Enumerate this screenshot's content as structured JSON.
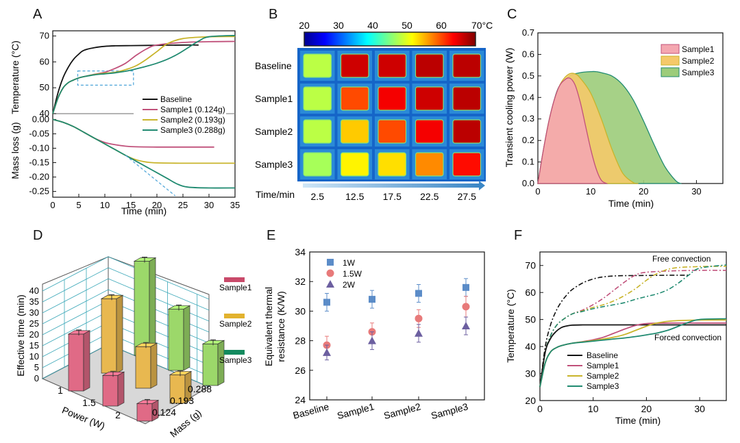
{
  "panels": {
    "A": {
      "label": "A"
    },
    "B": {
      "label": "B"
    },
    "C": {
      "label": "C"
    },
    "D": {
      "label": "D"
    },
    "E": {
      "label": "E"
    },
    "F": {
      "label": "F"
    }
  },
  "colors": {
    "baseline": "#111111",
    "sample1": "#c0507a",
    "sample2": "#c8b42a",
    "sample3": "#1f8a70",
    "c_sample1": "#f4a7b0",
    "c_sample2": "#f5c96a",
    "c_sample3": "#9ccc7a",
    "d_sample1": "#e06a86",
    "d_sample2": "#e8b850",
    "d_sample3": "#9cd86a",
    "legend_d_sample1": "#c94a6a",
    "legend_d_sample2": "#e2b22e",
    "legend_d_sample3": "#138a5e",
    "e_1w": "#5b8cc8",
    "e_15w": "#e87a7a",
    "e_2w": "#6c5fa0",
    "rect_highlight": "#4aa3d8"
  },
  "chart_data": [
    {
      "panel": "A",
      "type": "line",
      "xlabel": "Time (min)",
      "ylabel_top": "Temperature (°C)",
      "ylabel_bottom": "Mass loss (g)",
      "xlim": [
        0,
        35
      ],
      "xticks": [
        "0",
        "5",
        "10",
        "15",
        "20",
        "25",
        "30",
        "35"
      ],
      "top_ylim": [
        40,
        72
      ],
      "top_yticks": [
        "40",
        "50",
        "60",
        "70"
      ],
      "bottom_ylim": [
        -0.27,
        0.02
      ],
      "bottom_yticks": [
        "0.00",
        "-0.05",
        "-0.10",
        "-0.15",
        "-0.20",
        "-0.25"
      ],
      "legend": [
        {
          "name": "Baseline",
          "mass": ""
        },
        {
          "name": "Sample1",
          "mass": "(0.124g)"
        },
        {
          "name": "Sample2",
          "mass": "(0.193g)"
        },
        {
          "name": "Sample3",
          "mass": "(0.288g)"
        }
      ],
      "temperature_series": [
        {
          "name": "Baseline",
          "x": [
            0,
            1,
            2,
            3,
            4,
            5,
            6,
            8,
            10,
            12,
            15,
            20,
            25,
            28
          ],
          "y": [
            40,
            48,
            54,
            58,
            61,
            63,
            64.5,
            65.5,
            66,
            66.2,
            66.3,
            66.4,
            66.5,
            66.5
          ]
        },
        {
          "name": "Sample1",
          "x": [
            0,
            1,
            2,
            3,
            4,
            5,
            6,
            8,
            10,
            12,
            14,
            16,
            18,
            20,
            25,
            30,
            35
          ],
          "y": [
            40,
            46,
            50,
            52,
            53,
            53.8,
            54.3,
            55.2,
            56,
            57.5,
            59.5,
            62.5,
            65,
            66.5,
            67.5,
            67.8,
            67.9
          ]
        },
        {
          "name": "Sample2",
          "x": [
            0,
            1,
            2,
            3,
            4,
            5,
            6,
            8,
            10,
            12,
            14,
            16,
            18,
            20,
            22,
            25,
            30,
            35
          ],
          "y": [
            40,
            46,
            50,
            52,
            53,
            53.8,
            54.3,
            55.1,
            55.6,
            56,
            57,
            58.5,
            61,
            64,
            67,
            69,
            69.7,
            69.8
          ]
        },
        {
          "name": "Sample3",
          "x": [
            0,
            1,
            2,
            3,
            4,
            5,
            6,
            8,
            10,
            12,
            14,
            16,
            18,
            20,
            22,
            24,
            26,
            28,
            30,
            35
          ],
          "y": [
            40,
            46,
            50,
            52,
            53,
            53.8,
            54.3,
            55,
            55.4,
            55.8,
            56.4,
            57.3,
            58.3,
            59.5,
            61,
            63,
            65.5,
            68,
            69.7,
            70.2
          ]
        }
      ],
      "mass_series": [
        {
          "name": "Sample1",
          "x": [
            0,
            2,
            4,
            6,
            8,
            10,
            12,
            14,
            16,
            20,
            25,
            31
          ],
          "y": [
            0,
            -0.01,
            -0.025,
            -0.045,
            -0.065,
            -0.08,
            -0.088,
            -0.093,
            -0.095,
            -0.096,
            -0.096,
            -0.096
          ]
        },
        {
          "name": "Sample2",
          "x": [
            0,
            2,
            4,
            6,
            8,
            10,
            12,
            14,
            16,
            18,
            20,
            25,
            30,
            35
          ],
          "y": [
            0,
            -0.01,
            -0.025,
            -0.045,
            -0.065,
            -0.085,
            -0.105,
            -0.125,
            -0.14,
            -0.148,
            -0.151,
            -0.152,
            -0.152,
            -0.152
          ]
        },
        {
          "name": "Sample3",
          "x": [
            0,
            2,
            4,
            6,
            8,
            10,
            12,
            14,
            16,
            18,
            20,
            22,
            24,
            26,
            30,
            35
          ],
          "y": [
            0,
            -0.01,
            -0.025,
            -0.045,
            -0.065,
            -0.085,
            -0.105,
            -0.125,
            -0.145,
            -0.165,
            -0.185,
            -0.205,
            -0.225,
            -0.235,
            -0.238,
            -0.238
          ]
        }
      ]
    },
    {
      "panel": "B",
      "type": "heatmap",
      "colorbar_ticks": [
        "20",
        "30",
        "40",
        "50",
        "60"
      ],
      "colorbar_end": "70°C",
      "colorbar_range": [
        20,
        70
      ],
      "rows": [
        "Baseline",
        "Sample1",
        "Sample2",
        "Sample3"
      ],
      "columns": [
        "2.5",
        "12.5",
        "17.5",
        "22.5",
        "27.5"
      ],
      "xlabel": "Time/min",
      "temperatures": [
        [
          48,
          66,
          66,
          67,
          67
        ],
        [
          48,
          60,
          64,
          66,
          67
        ],
        [
          48,
          54,
          60,
          64,
          67
        ],
        [
          47,
          52,
          53,
          57,
          63
        ]
      ]
    },
    {
      "panel": "C",
      "type": "area",
      "xlabel": "Time (min)",
      "ylabel": "Transient cooling power (W)",
      "xlim": [
        0,
        35
      ],
      "xticks": [
        "0",
        "10",
        "20",
        "30"
      ],
      "ylim": [
        0,
        0.7
      ],
      "yticks": [
        "0.0",
        "0.1",
        "0.2",
        "0.3",
        "0.4",
        "0.5",
        "0.6",
        "0.7"
      ],
      "legend_position": "top-right",
      "series": [
        {
          "name": "Sample3",
          "x": [
            0,
            1,
            2,
            3,
            4,
            6,
            8,
            10,
            11,
            12,
            14,
            16,
            18,
            20,
            22,
            24,
            26,
            27
          ],
          "y": [
            0,
            0.15,
            0.28,
            0.38,
            0.45,
            0.5,
            0.515,
            0.52,
            0.52,
            0.515,
            0.5,
            0.46,
            0.39,
            0.29,
            0.18,
            0.08,
            0.015,
            0
          ]
        },
        {
          "name": "Sample2",
          "x": [
            0,
            1,
            2,
            3,
            4,
            5,
            6,
            7,
            8,
            10,
            12,
            14,
            16,
            18,
            19
          ],
          "y": [
            0,
            0.15,
            0.28,
            0.38,
            0.45,
            0.49,
            0.51,
            0.51,
            0.49,
            0.42,
            0.3,
            0.16,
            0.05,
            0.005,
            0
          ]
        },
        {
          "name": "Sample1",
          "x": [
            0,
            1,
            2,
            3,
            4,
            5,
            6,
            7,
            8,
            9,
            10,
            11,
            12,
            13
          ],
          "y": [
            0,
            0.15,
            0.28,
            0.38,
            0.45,
            0.48,
            0.49,
            0.46,
            0.38,
            0.27,
            0.16,
            0.07,
            0.015,
            0
          ]
        }
      ],
      "legend": [
        "Sample1",
        "Sample2",
        "Sample3"
      ]
    },
    {
      "panel": "D",
      "type": "bar",
      "ylabel": "Effective time (min)",
      "xlabel": "Power (W)",
      "zlabel": "Mass (g)",
      "power_ticks": [
        "1",
        "1.5",
        "2"
      ],
      "mass_ticks": [
        "0.124",
        "0.193",
        "0.288"
      ],
      "zticks": [
        "0",
        "5",
        "10",
        "15",
        "20",
        "25",
        "30",
        "35",
        "40"
      ],
      "zlim": [
        0,
        40
      ],
      "series": [
        {
          "name": "Sample1",
          "values": [
            26,
            14,
            8
          ]
        },
        {
          "name": "Sample2",
          "values": [
            34,
            19,
            13
          ]
        },
        {
          "name": "Sample3",
          "values": [
            43,
            28,
            19
          ]
        }
      ],
      "legend": [
        "Sample1",
        "Sample2",
        "Sample3"
      ]
    },
    {
      "panel": "E",
      "type": "scatter",
      "ylabel_line1": "Equivalent thermal",
      "ylabel_line2": "resistance (K/W)",
      "categories": [
        "Baseline",
        "Sample1",
        "Sample2",
        "Sample3"
      ],
      "ylim": [
        24,
        34
      ],
      "yticks": [
        "24",
        "26",
        "28",
        "30",
        "32",
        "34"
      ],
      "series": [
        {
          "name": "1W",
          "values": [
            30.6,
            30.8,
            31.2,
            31.6
          ],
          "err": [
            0.6,
            0.6,
            0.6,
            0.6
          ],
          "marker": "square"
        },
        {
          "name": "1.5W",
          "values": [
            27.7,
            28.6,
            29.5,
            30.3
          ],
          "err": [
            0.6,
            0.6,
            0.6,
            0.7
          ],
          "marker": "circle"
        },
        {
          "name": "2W",
          "values": [
            27.2,
            28.0,
            28.5,
            29.0
          ],
          "err": [
            0.5,
            0.6,
            0.6,
            0.6
          ],
          "marker": "triangle"
        }
      ],
      "legend": [
        "1W",
        "1.5W",
        "2W"
      ]
    },
    {
      "panel": "F",
      "type": "line",
      "xlabel": "Time (min)",
      "ylabel": "Temperature (°C)",
      "xlim": [
        0,
        35
      ],
      "xticks": [
        "0",
        "10",
        "20",
        "30"
      ],
      "ylim": [
        20,
        75
      ],
      "yticks": [
        "20",
        "30",
        "40",
        "50",
        "60",
        "70"
      ],
      "annotations": [
        "Free convection",
        "Forced convection"
      ],
      "legend": [
        "Baseline",
        "Sample1",
        "Sample2",
        "Sample3"
      ],
      "forced_series": [
        {
          "name": "Baseline",
          "x": [
            0,
            1,
            2,
            3,
            4,
            5,
            6,
            8,
            10,
            15,
            20,
            25,
            30,
            35
          ],
          "y": [
            25,
            38,
            43,
            45.5,
            47,
            47.6,
            47.9,
            48,
            48,
            48,
            48,
            48,
            48,
            48
          ]
        },
        {
          "name": "Sample1",
          "x": [
            0,
            1,
            2,
            3,
            4,
            6,
            8,
            10,
            12,
            14,
            16,
            18,
            20,
            25,
            30,
            35
          ],
          "y": [
            25,
            34,
            38,
            39.5,
            40.3,
            41.2,
            41.8,
            42.5,
            43.5,
            45,
            46.5,
            47.8,
            48.5,
            48.7,
            48.7,
            48.7
          ]
        },
        {
          "name": "Sample2",
          "x": [
            0,
            1,
            2,
            3,
            4,
            6,
            8,
            10,
            12,
            14,
            16,
            18,
            20,
            22,
            25,
            30,
            35
          ],
          "y": [
            25,
            34,
            38,
            39.5,
            40.3,
            41.2,
            41.7,
            42.2,
            42.8,
            43.5,
            44.5,
            46,
            47.5,
            48.7,
            49.5,
            49.8,
            49.8
          ]
        },
        {
          "name": "Sample3",
          "x": [
            0,
            1,
            2,
            3,
            4,
            6,
            8,
            10,
            12,
            14,
            16,
            18,
            20,
            22,
            24,
            26,
            28,
            30,
            35
          ],
          "y": [
            25,
            34,
            38,
            39.5,
            40.3,
            41.2,
            41.6,
            42,
            42.4,
            42.8,
            43.2,
            43.7,
            44.3,
            45,
            46,
            47.5,
            49,
            50,
            50.3
          ]
        }
      ],
      "free_series": [
        {
          "name": "Baseline",
          "x": [
            0,
            1,
            2,
            3,
            4,
            5,
            6,
            8,
            10,
            12,
            15,
            20,
            25,
            28
          ],
          "y": [
            25,
            40,
            48,
            53,
            56.5,
            59,
            61,
            63.5,
            65,
            65.8,
            66.2,
            66.3,
            66.4,
            66.4
          ]
        },
        {
          "name": "Sample1",
          "x": [
            0,
            1,
            2,
            3,
            4,
            6,
            8,
            10,
            12,
            14,
            16,
            18,
            20,
            25,
            30,
            35
          ],
          "y": [
            25,
            38,
            44,
            47.5,
            49.5,
            52,
            53.5,
            55.5,
            58,
            61,
            64,
            66.5,
            67.5,
            68,
            68.2,
            68.2
          ]
        },
        {
          "name": "Sample2",
          "x": [
            0,
            1,
            2,
            3,
            4,
            6,
            8,
            10,
            12,
            14,
            16,
            18,
            20,
            22,
            25,
            30,
            35
          ],
          "y": [
            25,
            38,
            44,
            47.5,
            49.5,
            52,
            53.2,
            54.5,
            55.5,
            57,
            59,
            61.5,
            64.5,
            67,
            69,
            69.6,
            69.7
          ]
        },
        {
          "name": "Sample3",
          "x": [
            0,
            1,
            2,
            3,
            4,
            6,
            8,
            10,
            12,
            14,
            16,
            18,
            20,
            22,
            24,
            26,
            28,
            30,
            35
          ],
          "y": [
            25,
            38,
            44,
            47.5,
            49.5,
            52,
            53,
            54,
            54.8,
            55.5,
            56.3,
            57.5,
            58.5,
            59.5,
            61,
            63.5,
            66.5,
            69,
            70.2
          ]
        }
      ]
    }
  ]
}
